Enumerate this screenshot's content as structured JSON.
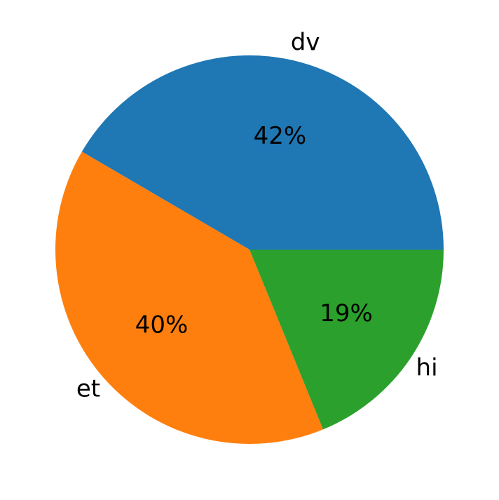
{
  "chart_data": {
    "type": "pie",
    "categories": [
      "dv",
      "et",
      "hi"
    ],
    "values": [
      42,
      40,
      19
    ],
    "value_labels": [
      "42%",
      "40%",
      "19%"
    ],
    "colors": [
      "#1f77b4",
      "#ff7f0e",
      "#2ca02c"
    ]
  }
}
